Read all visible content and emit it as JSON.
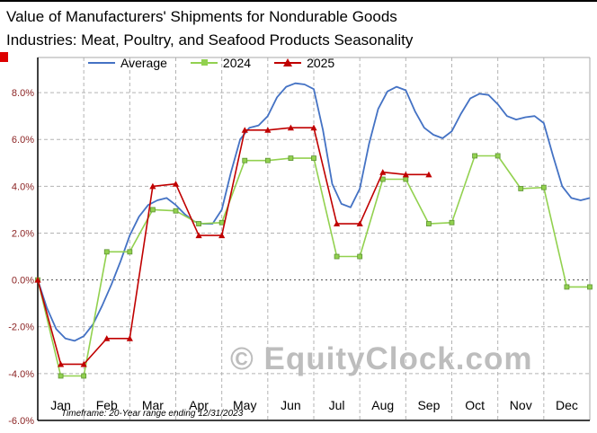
{
  "title": "Value of Manufacturers' Shipments for Nondurable Goods Industries: Meat, Poultry, and Seafood Products Seasonality",
  "title_lines": [
    "Value of Manufacturers'  Shipments for Nondurable Goods",
    "Industries: Meat, Poultry, and Seafood Products Seasonality"
  ],
  "watermark": "© EquityClock.com",
  "footnote": "Timeframe: 20-Year range ending 12/31/2023",
  "colors": {
    "average_line": "#4472c4",
    "y2024_line": "#92d14f",
    "y2024_marker_edge": "#5d9332",
    "y2025_line": "#c00000",
    "y_axis_labels": "#8b2323",
    "x_axis_labels": "#000000",
    "gridline": "#b3b3b3",
    "zero_line": "#4d4d4d",
    "plot_border": "#aaaaaa",
    "axis": "#000000",
    "watermark": "#bdbdbd",
    "corner_marker": "#dd0000"
  },
  "chart_data": {
    "type": "line",
    "title": "Value of Manufacturers' Shipments for Nondurable Goods Industries: Meat, Poultry, and Seafood Products Seasonality",
    "xlabel": "",
    "ylabel": "",
    "x_axis_months": [
      "Jan",
      "Feb",
      "Mar",
      "Apr",
      "May",
      "Jun",
      "Jul",
      "Aug",
      "Sep",
      "Oct",
      "Nov",
      "Dec"
    ],
    "x_domain_months": [
      0,
      12
    ],
    "ylim": [
      -6.0,
      9.5
    ],
    "yticks": [
      8.0,
      6.0,
      4.0,
      2.0,
      0.0,
      -2.0,
      -4.0,
      -6.0
    ],
    "ytick_format": "percent_1dp",
    "grid": true,
    "legend_position": "top",
    "series": [
      {
        "name": "Average",
        "color": "#4472c4",
        "marker": "none",
        "points": [
          [
            0,
            0
          ],
          [
            0.2,
            -1.2
          ],
          [
            0.4,
            -2.1
          ],
          [
            0.6,
            -2.5
          ],
          [
            0.8,
            -2.6
          ],
          [
            1,
            -2.4
          ],
          [
            1.2,
            -1.9
          ],
          [
            1.4,
            -1.1
          ],
          [
            1.6,
            -0.2
          ],
          [
            1.8,
            0.8
          ],
          [
            2,
            1.9
          ],
          [
            2.2,
            2.7
          ],
          [
            2.4,
            3.2
          ],
          [
            2.6,
            3.4
          ],
          [
            2.8,
            3.5
          ],
          [
            3,
            3.2
          ],
          [
            3.2,
            2.8
          ],
          [
            3.4,
            2.5
          ],
          [
            3.6,
            2.4
          ],
          [
            3.8,
            2.4
          ],
          [
            4,
            3.0
          ],
          [
            4.2,
            4.6
          ],
          [
            4.4,
            6.0
          ],
          [
            4.6,
            6.5
          ],
          [
            4.8,
            6.6
          ],
          [
            5,
            7.0
          ],
          [
            5.2,
            7.8
          ],
          [
            5.4,
            8.25
          ],
          [
            5.6,
            8.4
          ],
          [
            5.8,
            8.35
          ],
          [
            6,
            8.15
          ],
          [
            6.2,
            6.4
          ],
          [
            6.4,
            4.1
          ],
          [
            6.6,
            3.25
          ],
          [
            6.8,
            3.1
          ],
          [
            7,
            3.9
          ],
          [
            7.2,
            5.8
          ],
          [
            7.4,
            7.3
          ],
          [
            7.6,
            8.05
          ],
          [
            7.8,
            8.25
          ],
          [
            8,
            8.1
          ],
          [
            8.2,
            7.2
          ],
          [
            8.4,
            6.5
          ],
          [
            8.6,
            6.2
          ],
          [
            8.8,
            6.05
          ],
          [
            9,
            6.35
          ],
          [
            9.2,
            7.1
          ],
          [
            9.4,
            7.75
          ],
          [
            9.6,
            7.95
          ],
          [
            9.8,
            7.9
          ],
          [
            10,
            7.5
          ],
          [
            10.2,
            7.0
          ],
          [
            10.4,
            6.85
          ],
          [
            10.6,
            6.95
          ],
          [
            10.8,
            7.0
          ],
          [
            11,
            6.7
          ],
          [
            11.2,
            5.3
          ],
          [
            11.4,
            4.0
          ],
          [
            11.6,
            3.5
          ],
          [
            11.8,
            3.4
          ],
          [
            12,
            3.5
          ]
        ]
      },
      {
        "name": "2024",
        "color": "#92d14f",
        "marker": "square",
        "points": [
          [
            0,
            0
          ],
          [
            0.5,
            -4.1
          ],
          [
            1,
            -4.1
          ],
          [
            1.5,
            1.2
          ],
          [
            2,
            1.2
          ],
          [
            2.5,
            3.0
          ],
          [
            3,
            2.95
          ],
          [
            3.5,
            2.4
          ],
          [
            4,
            2.45
          ],
          [
            4.5,
            5.1
          ],
          [
            5,
            5.1
          ],
          [
            5.5,
            5.2
          ],
          [
            6,
            5.2
          ],
          [
            6.5,
            1.0
          ],
          [
            7,
            1.0
          ],
          [
            7.5,
            4.3
          ],
          [
            8,
            4.3
          ],
          [
            8.5,
            2.4
          ],
          [
            9,
            2.45
          ],
          [
            9.5,
            5.3
          ],
          [
            10,
            5.3
          ],
          [
            10.5,
            3.9
          ],
          [
            11,
            3.95
          ],
          [
            11.5,
            -0.3
          ],
          [
            12,
            -0.3
          ]
        ]
      },
      {
        "name": "2025",
        "color": "#c00000",
        "marker": "triangle",
        "points": [
          [
            0,
            0
          ],
          [
            0.5,
            -3.6
          ],
          [
            1,
            -3.6
          ],
          [
            1.5,
            -2.5
          ],
          [
            2,
            -2.5
          ],
          [
            2.5,
            4.0
          ],
          [
            3,
            4.1
          ],
          [
            3.5,
            1.9
          ],
          [
            4,
            1.9
          ],
          [
            4.5,
            6.4
          ],
          [
            5,
            6.4
          ],
          [
            5.5,
            6.5
          ],
          [
            6,
            6.5
          ],
          [
            6.5,
            2.4
          ],
          [
            7,
            2.4
          ],
          [
            7.5,
            4.6
          ],
          [
            8,
            4.5
          ],
          [
            8.5,
            4.5
          ]
        ]
      }
    ]
  }
}
